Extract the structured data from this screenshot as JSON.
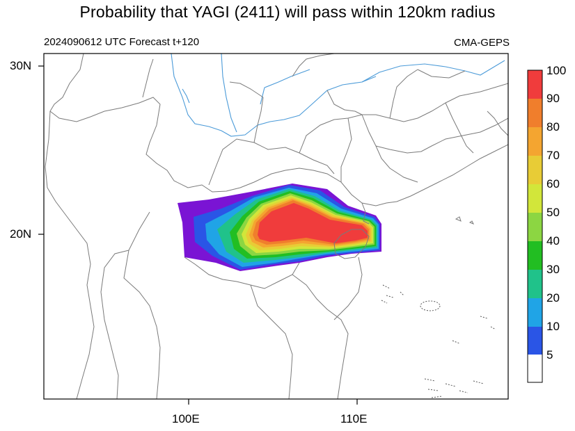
{
  "title": "Probability that YAGI (2411) will pass within 120km radius",
  "subtitle_left": "2024090612 UTC Forecast t+120",
  "subtitle_right": "CMA-GEPS",
  "axes": {
    "y_ticks": [
      "30N",
      "20N"
    ],
    "x_ticks": [
      "100E",
      "110E"
    ]
  },
  "colorbar": {
    "labels": [
      "100",
      "90",
      "80",
      "70",
      "60",
      "50",
      "40",
      "30",
      "20",
      "10",
      "5"
    ],
    "colors": [
      "#f03c3c",
      "#f07e2c",
      "#f4a530",
      "#e8cc36",
      "#d2e63a",
      "#8cd642",
      "#22be22",
      "#20c28a",
      "#20a4e6",
      "#2a55e6",
      "#7a14d4",
      "#ffffff"
    ]
  },
  "colors": {
    "border": "#7a7a7a",
    "river": "#4a9ad8",
    "frame": "#000000"
  }
}
